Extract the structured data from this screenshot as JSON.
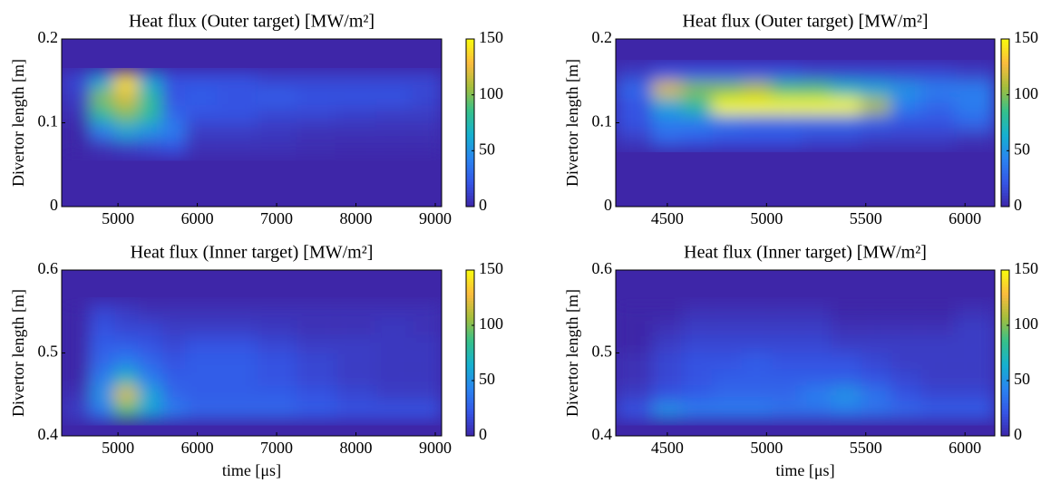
{
  "chart_data": [
    {
      "type": "heatmap",
      "title": "Heat flux (Outer target) [MW/m²]",
      "ylabel": "Divertor length [m]",
      "x": [
        4500,
        4800,
        5100,
        5400,
        5700,
        6000,
        6500,
        7000,
        7500,
        8000,
        8500,
        8900
      ],
      "y": [
        0.07,
        0.09,
        0.11,
        0.13,
        0.15
      ],
      "z": [
        [
          0,
          5,
          10,
          15,
          20,
          5,
          5,
          5,
          3,
          2,
          2,
          2
        ],
        [
          0,
          40,
          60,
          50,
          40,
          10,
          10,
          8,
          5,
          5,
          5,
          5
        ],
        [
          5,
          80,
          100,
          80,
          30,
          20,
          20,
          15,
          15,
          12,
          10,
          10
        ],
        [
          10,
          100,
          120,
          80,
          20,
          25,
          20,
          25,
          20,
          20,
          20,
          15
        ],
        [
          15,
          60,
          140,
          60,
          20,
          20,
          20,
          15,
          15,
          15,
          15,
          15
        ]
      ],
      "xlim": [
        4290,
        9080
      ],
      "ylim": [
        0,
        0.2
      ],
      "xticks": [
        5000,
        6000,
        7000,
        8000,
        9000
      ],
      "yticks": [
        0,
        0.1,
        0.2
      ],
      "clim": [
        0,
        150
      ],
      "cticks": [
        0,
        50,
        100,
        150
      ],
      "colormap": [
        "#3e26a8",
        "#3555e6",
        "#2a84f0",
        "#15b0d0",
        "#35c18b",
        "#a5be3c",
        "#fbbc3e",
        "#f9fb0e"
      ]
    },
    {
      "type": "heatmap",
      "title": "Heat flux (Outer target) [MW/m²]",
      "ylabel": "Divertor length [m]",
      "x": [
        4350,
        4500,
        4650,
        4800,
        4950,
        5100,
        5250,
        5400,
        5550,
        5700,
        5850,
        6050
      ],
      "y": [
        0.08,
        0.1,
        0.12,
        0.14,
        0.16
      ],
      "z": [
        [
          10,
          30,
          25,
          20,
          20,
          20,
          15,
          15,
          10,
          10,
          10,
          5
        ],
        [
          20,
          40,
          40,
          35,
          30,
          30,
          30,
          30,
          25,
          20,
          20,
          30
        ],
        [
          20,
          60,
          80,
          150,
          150,
          150,
          150,
          150,
          110,
          40,
          30,
          40
        ],
        [
          30,
          120,
          100,
          100,
          110,
          90,
          90,
          70,
          60,
          50,
          40,
          40
        ],
        [
          10,
          20,
          20,
          20,
          20,
          20,
          15,
          15,
          15,
          15,
          15,
          10
        ]
      ],
      "xlim": [
        4240,
        6150
      ],
      "ylim": [
        0,
        0.2
      ],
      "xticks": [
        4500,
        5000,
        5500,
        6000
      ],
      "yticks": [
        0,
        0.1,
        0.2
      ],
      "clim": [
        0,
        150
      ],
      "cticks": [
        0,
        50,
        100,
        150
      ],
      "colormap": [
        "#3e26a8",
        "#3555e6",
        "#2a84f0",
        "#15b0d0",
        "#35c18b",
        "#a5be3c",
        "#fbbc3e",
        "#f9fb0e"
      ]
    },
    {
      "type": "heatmap",
      "title": "Heat flux (Inner target) [MW/m²]",
      "ylabel": "Divertor length [m]",
      "xlabel": "time [μs]",
      "x": [
        4500,
        4800,
        5100,
        5400,
        5700,
        6000,
        6500,
        7000,
        7500,
        8000,
        8500,
        8900
      ],
      "y": [
        0.43,
        0.45,
        0.47,
        0.49,
        0.51,
        0.53,
        0.55
      ],
      "z": [
        [
          10,
          40,
          90,
          60,
          40,
          30,
          30,
          30,
          25,
          20,
          20,
          20
        ],
        [
          5,
          50,
          120,
          60,
          30,
          25,
          25,
          25,
          20,
          15,
          10,
          10
        ],
        [
          0,
          40,
          70,
          40,
          25,
          25,
          25,
          20,
          15,
          10,
          8,
          8
        ],
        [
          0,
          30,
          40,
          30,
          20,
          25,
          25,
          20,
          15,
          10,
          8,
          8
        ],
        [
          0,
          25,
          25,
          20,
          15,
          20,
          20,
          15,
          10,
          10,
          8,
          8
        ],
        [
          0,
          20,
          15,
          15,
          10,
          10,
          10,
          8,
          5,
          5,
          8,
          5
        ],
        [
          0,
          15,
          10,
          5,
          5,
          5,
          5,
          5,
          5,
          5,
          5,
          5
        ]
      ],
      "xlim": [
        4290,
        9080
      ],
      "ylim": [
        0.4,
        0.6
      ],
      "xticks": [
        5000,
        6000,
        7000,
        8000,
        9000
      ],
      "yticks": [
        0.4,
        0.5,
        0.6
      ],
      "clim": [
        0,
        150
      ],
      "cticks": [
        0,
        50,
        100,
        150
      ],
      "colormap": [
        "#3e26a8",
        "#3555e6",
        "#2a84f0",
        "#15b0d0",
        "#35c18b",
        "#a5be3c",
        "#fbbc3e",
        "#f9fb0e"
      ]
    },
    {
      "type": "heatmap",
      "title": "Heat flux (Inner target) [MW/m²]",
      "ylabel": "Divertor length [m]",
      "xlabel": "time [μs]",
      "x": [
        4350,
        4500,
        4650,
        4800,
        4950,
        5100,
        5250,
        5400,
        5550,
        5700,
        5850,
        6050
      ],
      "y": [
        0.43,
        0.45,
        0.47,
        0.49,
        0.51,
        0.53,
        0.55
      ],
      "z": [
        [
          20,
          50,
          40,
          40,
          40,
          35,
          35,
          40,
          35,
          30,
          25,
          25
        ],
        [
          10,
          20,
          25,
          30,
          30,
          30,
          40,
          50,
          35,
          20,
          15,
          15
        ],
        [
          5,
          15,
          20,
          25,
          25,
          25,
          25,
          25,
          20,
          15,
          10,
          10
        ],
        [
          5,
          15,
          20,
          20,
          25,
          20,
          20,
          20,
          15,
          10,
          10,
          10
        ],
        [
          0,
          10,
          15,
          15,
          15,
          15,
          15,
          10,
          10,
          10,
          10,
          10
        ],
        [
          0,
          5,
          10,
          10,
          10,
          10,
          10,
          5,
          5,
          5,
          5,
          10
        ],
        [
          0,
          0,
          5,
          5,
          5,
          5,
          5,
          0,
          0,
          0,
          0,
          5
        ]
      ],
      "xlim": [
        4240,
        6150
      ],
      "ylim": [
        0.4,
        0.6
      ],
      "xticks": [
        4500,
        5000,
        5500,
        6000
      ],
      "yticks": [
        0.4,
        0.5,
        0.6
      ],
      "clim": [
        0,
        150
      ],
      "cticks": [
        0,
        50,
        100,
        150
      ],
      "colormap": [
        "#3e26a8",
        "#3555e6",
        "#2a84f0",
        "#15b0d0",
        "#35c18b",
        "#a5be3c",
        "#fbbc3e",
        "#f9fb0e"
      ]
    }
  ]
}
